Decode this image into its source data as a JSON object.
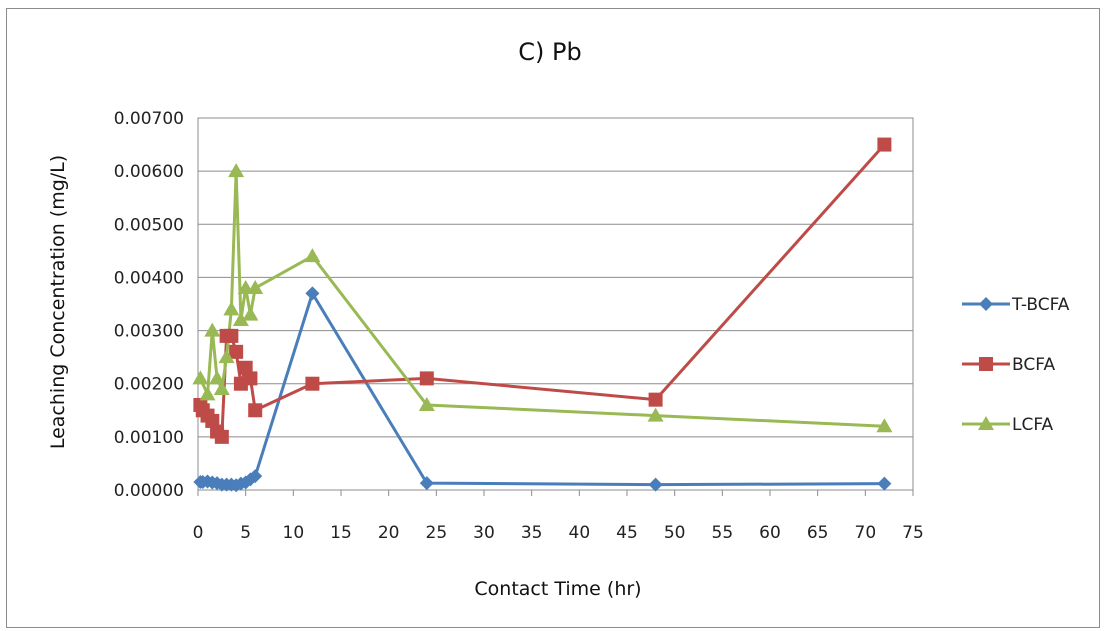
{
  "chart_data": {
    "type": "line",
    "title": "C) Pb",
    "xlabel": "Contact Time (hr)",
    "ylabel": "Leaching Concentration (mg/L)",
    "xlim": [
      0,
      75
    ],
    "ylim": [
      0,
      0.007
    ],
    "x_ticks": [
      "0",
      "5",
      "10",
      "15",
      "20",
      "25",
      "30",
      "35",
      "40",
      "45",
      "50",
      "55",
      "60",
      "65",
      "70",
      "75"
    ],
    "y_ticks": [
      "0.00000",
      "0.00100",
      "0.00200",
      "0.00300",
      "0.00400",
      "0.00500",
      "0.00600",
      "0.00700"
    ],
    "grid": "horizontal",
    "legend_position": "right",
    "series": [
      {
        "name": "T-BCFA",
        "color": "#4a7ebb",
        "marker": "diamond",
        "points": [
          [
            0.25,
            0.00015
          ],
          [
            0.5,
            0.00015
          ],
          [
            1,
            0.00016
          ],
          [
            1.5,
            0.00014
          ],
          [
            2,
            0.00013
          ],
          [
            2.5,
            0.0001
          ],
          [
            3,
            0.0001
          ],
          [
            3.5,
            0.0001
          ],
          [
            4,
            9e-05
          ],
          [
            4.5,
            0.00012
          ],
          [
            5,
            0.00014
          ],
          [
            5.5,
            0.0002
          ],
          [
            6,
            0.00026
          ],
          [
            12,
            0.0037
          ],
          [
            24,
            0.00013
          ],
          [
            48,
            0.0001
          ],
          [
            72,
            0.00012
          ]
        ]
      },
      {
        "name": "BCFA",
        "color": "#be4b48",
        "marker": "square",
        "points": [
          [
            0.25,
            0.0016
          ],
          [
            0.5,
            0.0015
          ],
          [
            1,
            0.0014
          ],
          [
            1.5,
            0.0013
          ],
          [
            2,
            0.0011
          ],
          [
            2.5,
            0.001
          ],
          [
            3,
            0.0029
          ],
          [
            3.5,
            0.0029
          ],
          [
            4,
            0.0026
          ],
          [
            4.5,
            0.002
          ],
          [
            5,
            0.0023
          ],
          [
            5.5,
            0.0021
          ],
          [
            6,
            0.0015
          ],
          [
            12,
            0.002
          ],
          [
            24,
            0.0021
          ],
          [
            48,
            0.0017
          ],
          [
            72,
            0.0065
          ]
        ]
      },
      {
        "name": "LCFA",
        "color": "#98b954",
        "marker": "triangle",
        "points": [
          [
            0.25,
            0.0021
          ],
          [
            1,
            0.0018
          ],
          [
            1.5,
            0.003
          ],
          [
            2,
            0.0021
          ],
          [
            2.5,
            0.0019
          ],
          [
            3,
            0.0025
          ],
          [
            3.5,
            0.0034
          ],
          [
            4,
            0.006
          ],
          [
            4.5,
            0.0032
          ],
          [
            5,
            0.0038
          ],
          [
            5.5,
            0.0033
          ],
          [
            6,
            0.0038
          ],
          [
            12,
            0.0044
          ],
          [
            24,
            0.0016
          ],
          [
            48,
            0.0014
          ],
          [
            72,
            0.0012
          ]
        ]
      }
    ]
  }
}
